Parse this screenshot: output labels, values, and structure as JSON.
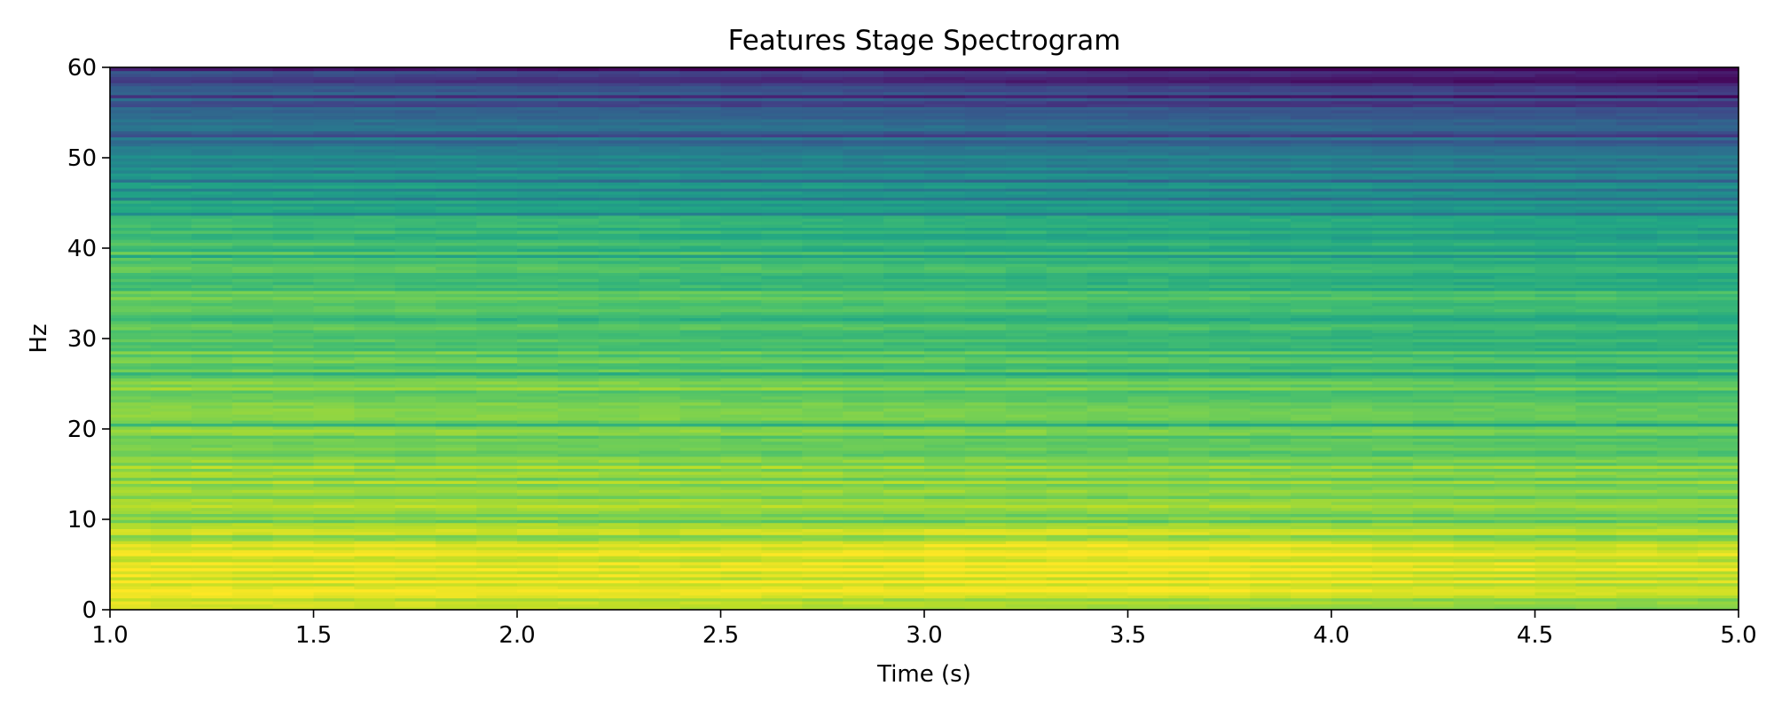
{
  "chart_data": {
    "type": "heatmap",
    "title": "Features Stage Spectrogram",
    "xlabel": "Time (s)",
    "ylabel": "Hz",
    "xlim": [
      1.0,
      5.0
    ],
    "ylim": [
      0,
      60
    ],
    "xticks": [
      1.0,
      1.5,
      2.0,
      2.5,
      3.0,
      3.5,
      4.0,
      4.5,
      5.0
    ],
    "xtick_labels": [
      "1.0",
      "1.5",
      "2.0",
      "2.5",
      "3.0",
      "3.5",
      "4.0",
      "4.5",
      "5.0"
    ],
    "yticks": [
      0,
      10,
      20,
      30,
      40,
      50,
      60
    ],
    "ytick_labels": [
      "0",
      "10",
      "20",
      "30",
      "40",
      "50",
      "60"
    ],
    "colormap": "viridis",
    "grid": false,
    "intensity_profile": {
      "description_free_values": true,
      "frequency_hz": [
        0,
        2,
        5,
        8,
        12,
        18,
        25,
        30,
        35,
        40,
        45,
        50,
        55,
        60
      ],
      "level_start": [
        0.92,
        0.96,
        0.95,
        0.92,
        0.86,
        0.82,
        0.8,
        0.75,
        0.74,
        0.72,
        0.62,
        0.45,
        0.3,
        0.25
      ],
      "level_end": [
        0.75,
        0.9,
        0.92,
        0.88,
        0.82,
        0.76,
        0.72,
        0.66,
        0.66,
        0.6,
        0.52,
        0.38,
        0.22,
        0.05
      ]
    }
  }
}
